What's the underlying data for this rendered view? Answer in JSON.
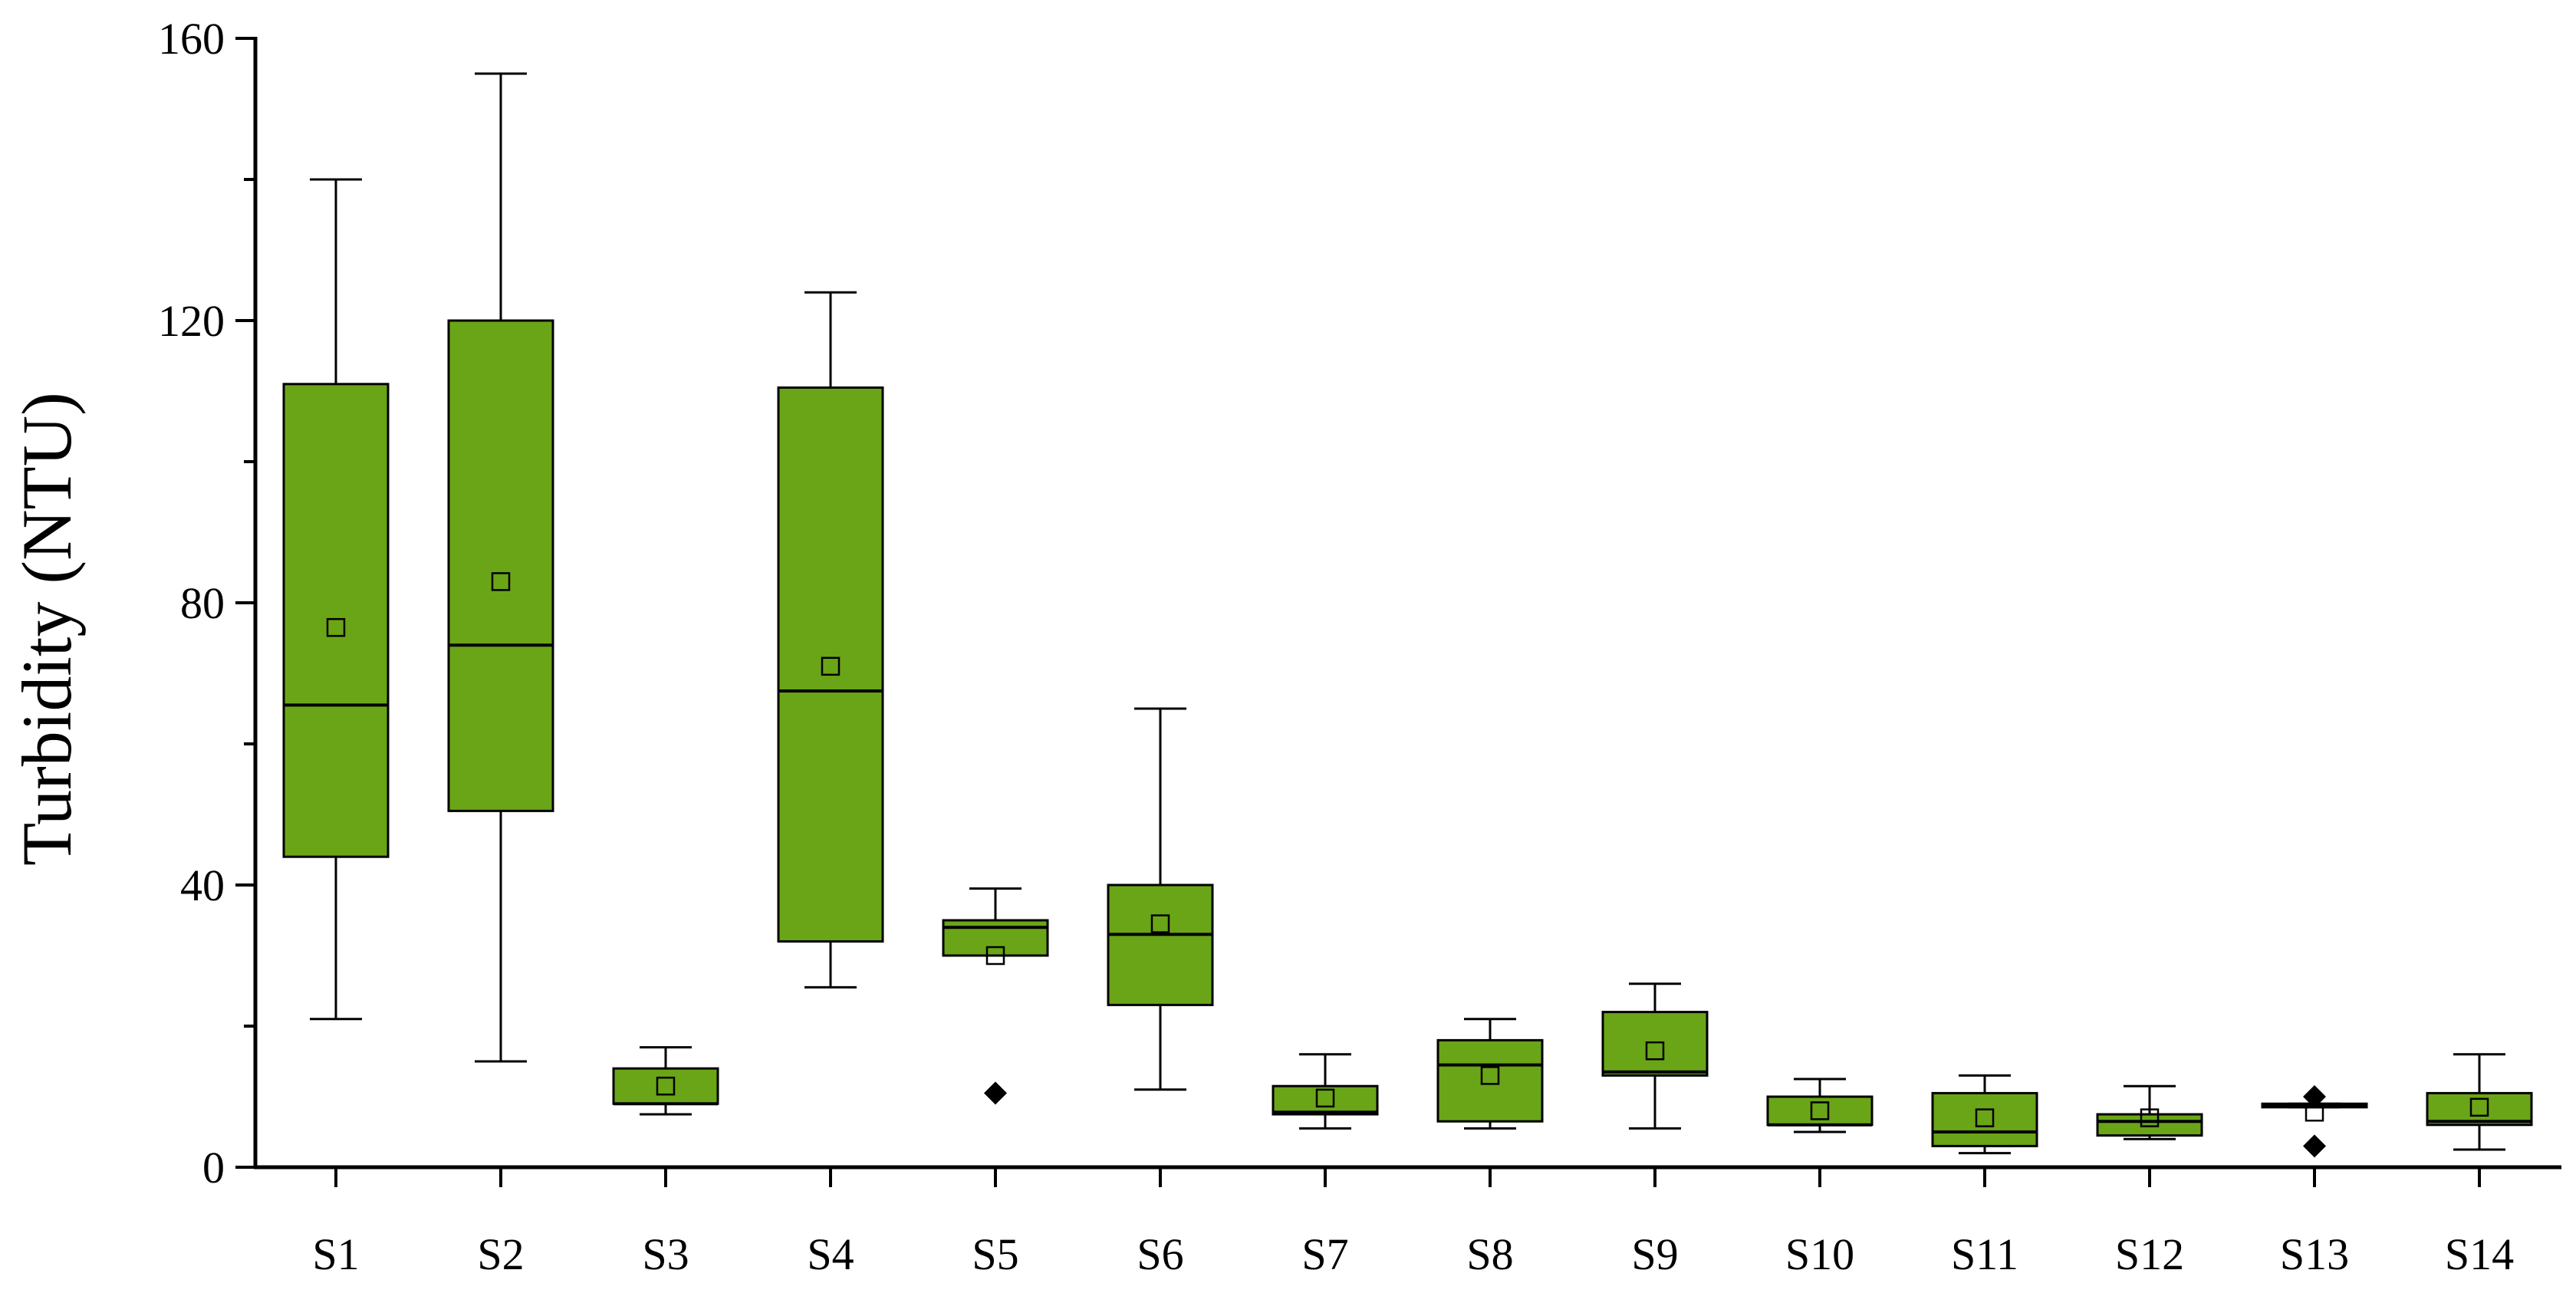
{
  "chart_data": {
    "type": "box",
    "ylabel": "Turbidity (NTU)",
    "ylim": [
      0,
      160
    ],
    "yticks": [
      0,
      40,
      80,
      120,
      160
    ],
    "y_minor_step": 20,
    "grid": false,
    "legend": "none",
    "box_color": "#6aa517",
    "outline_color": "#000000",
    "categories": [
      "S1",
      "S2",
      "S3",
      "S4",
      "S5",
      "S6",
      "S7",
      "S8",
      "S9",
      "S10",
      "S11",
      "S12",
      "S13",
      "S14"
    ],
    "boxes": [
      {
        "min": 21,
        "q1": 44,
        "median": 65.5,
        "q3": 111,
        "max": 140,
        "mean": 76.5,
        "outliers": []
      },
      {
        "min": 15,
        "q1": 50.5,
        "median": 74,
        "q3": 120,
        "max": 155,
        "mean": 83,
        "outliers": []
      },
      {
        "min": 7.5,
        "q1": 9,
        "median": 9,
        "q3": 14,
        "max": 17,
        "mean": 11.5,
        "outliers": []
      },
      {
        "min": 25.5,
        "q1": 32,
        "median": 67.5,
        "q3": 110.5,
        "max": 124,
        "mean": 71,
        "outliers": []
      },
      {
        "min": 30,
        "q1": 30,
        "median": 34,
        "q3": 35,
        "max": 39.5,
        "mean": 30,
        "outliers": [
          10.5
        ]
      },
      {
        "min": 11,
        "q1": 23,
        "median": 33,
        "q3": 40,
        "max": 65,
        "mean": 34.5,
        "outliers": []
      },
      {
        "min": 5.5,
        "q1": 7.5,
        "median": 7.8,
        "q3": 11.5,
        "max": 16,
        "mean": 9.8,
        "outliers": []
      },
      {
        "min": 5.5,
        "q1": 6.5,
        "median": 14.5,
        "q3": 18,
        "max": 21,
        "mean": 13,
        "outliers": []
      },
      {
        "min": 5.5,
        "q1": 13,
        "median": 13.5,
        "q3": 22,
        "max": 26,
        "mean": 16.5,
        "outliers": []
      },
      {
        "min": 5,
        "q1": 6,
        "median": 6,
        "q3": 10,
        "max": 12.5,
        "mean": 8,
        "outliers": []
      },
      {
        "min": 2,
        "q1": 3,
        "median": 5,
        "q3": 10.5,
        "max": 13,
        "mean": 7,
        "outliers": []
      },
      {
        "min": 4,
        "q1": 4.5,
        "median": 6.5,
        "q3": 7.5,
        "max": 11.5,
        "mean": 7,
        "outliers": []
      },
      {
        "min": 8.5,
        "q1": 8.5,
        "median": 8.7,
        "q3": 9,
        "max": 9,
        "mean": 7.8,
        "outliers": [
          10,
          3
        ]
      },
      {
        "min": 2.5,
        "q1": 6,
        "median": 6.5,
        "q3": 10.5,
        "max": 16,
        "mean": 8.5,
        "outliers": []
      }
    ]
  }
}
